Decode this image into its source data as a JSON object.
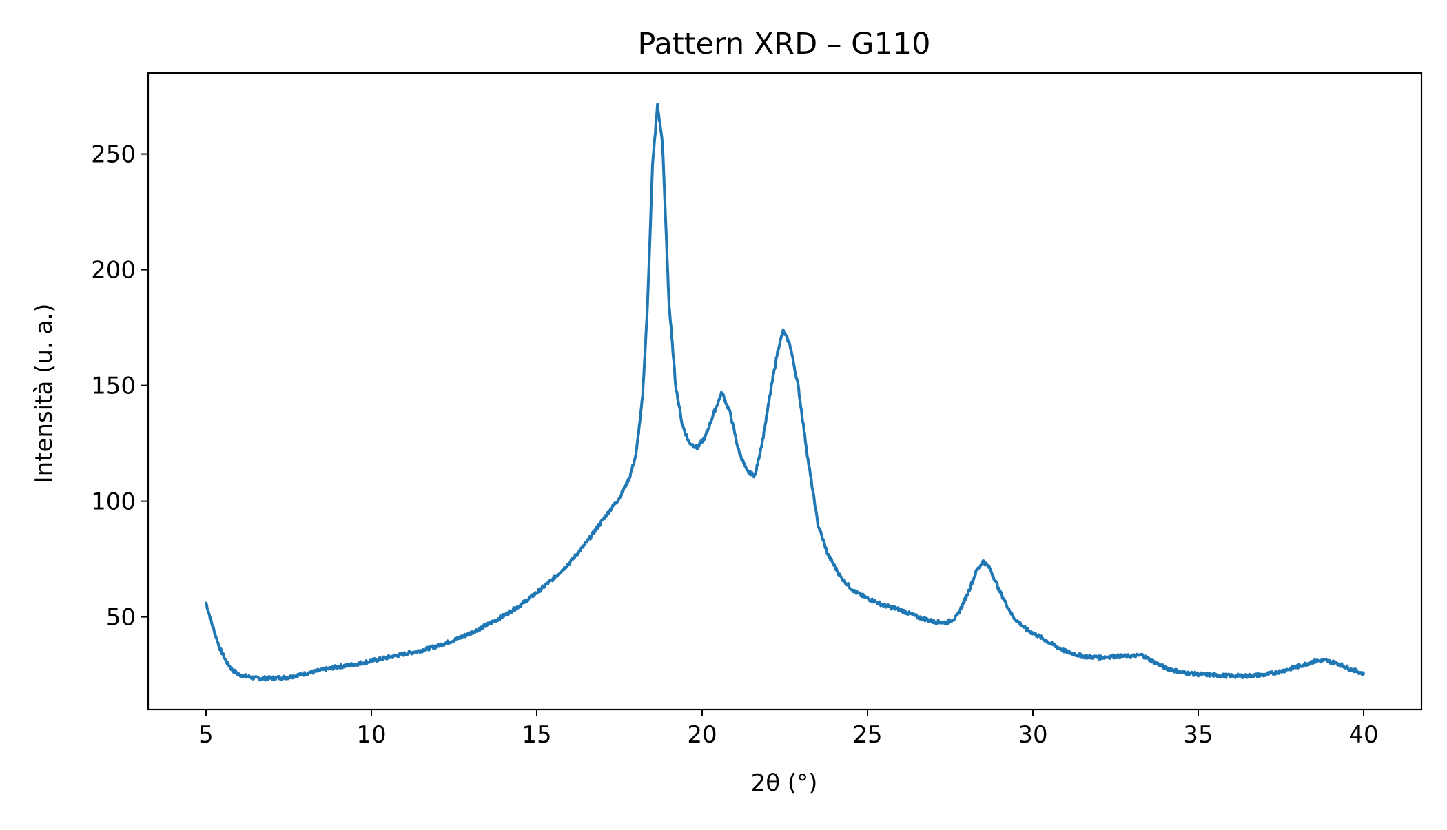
{
  "chart_data": {
    "type": "line",
    "title": "Pattern XRD – G110",
    "xlabel": "2θ (°)",
    "ylabel": "Intensità (u. a.)",
    "xlim": [
      3.25,
      41.75
    ],
    "ylim": [
      10,
      285
    ],
    "xticks": [
      5,
      10,
      15,
      20,
      25,
      30,
      35,
      40
    ],
    "yticks": [
      50,
      100,
      150,
      200,
      250
    ],
    "grid": false,
    "legend": "none",
    "series": [
      {
        "color": "#1f77b4",
        "points": [
          [
            5.0,
            56
          ],
          [
            5.2,
            46
          ],
          [
            5.4,
            37
          ],
          [
            5.6,
            31
          ],
          [
            5.8,
            27
          ],
          [
            6.0,
            25
          ],
          [
            6.5,
            23.5
          ],
          [
            7.0,
            23.5
          ],
          [
            7.5,
            24
          ],
          [
            8.0,
            25.5
          ],
          [
            8.5,
            27
          ],
          [
            9.0,
            28.5
          ],
          [
            9.5,
            29.5
          ],
          [
            10.0,
            31
          ],
          [
            10.5,
            32.5
          ],
          [
            11.0,
            34
          ],
          [
            11.5,
            35.5
          ],
          [
            12.0,
            37.5
          ],
          [
            12.5,
            40
          ],
          [
            13.0,
            43
          ],
          [
            13.5,
            46.5
          ],
          [
            14.0,
            50.5
          ],
          [
            14.5,
            55
          ],
          [
            15.0,
            60.5
          ],
          [
            15.5,
            66.5
          ],
          [
            16.0,
            73.5
          ],
          [
            16.5,
            82
          ],
          [
            17.0,
            92
          ],
          [
            17.5,
            101.5
          ],
          [
            17.8,
            110
          ],
          [
            18.0,
            120
          ],
          [
            18.2,
            145
          ],
          [
            18.35,
            185
          ],
          [
            18.5,
            245
          ],
          [
            18.65,
            271
          ],
          [
            18.8,
            255
          ],
          [
            19.0,
            185
          ],
          [
            19.2,
            150
          ],
          [
            19.4,
            133
          ],
          [
            19.6,
            125.5
          ],
          [
            19.85,
            123
          ],
          [
            20.1,
            128
          ],
          [
            20.35,
            138
          ],
          [
            20.6,
            147
          ],
          [
            20.85,
            138
          ],
          [
            21.1,
            122
          ],
          [
            21.35,
            113
          ],
          [
            21.6,
            111
          ],
          [
            21.85,
            128
          ],
          [
            22.1,
            150
          ],
          [
            22.3,
            166
          ],
          [
            22.45,
            173.5
          ],
          [
            22.65,
            168
          ],
          [
            22.9,
            150
          ],
          [
            23.2,
            118
          ],
          [
            23.5,
            90
          ],
          [
            23.8,
            77
          ],
          [
            24.2,
            67
          ],
          [
            24.6,
            61
          ],
          [
            25.0,
            58
          ],
          [
            25.5,
            55
          ],
          [
            26.0,
            53
          ],
          [
            26.5,
            50
          ],
          [
            27.0,
            48
          ],
          [
            27.4,
            47.5
          ],
          [
            27.7,
            50
          ],
          [
            28.0,
            59
          ],
          [
            28.3,
            70
          ],
          [
            28.5,
            74
          ],
          [
            28.7,
            71
          ],
          [
            29.0,
            61
          ],
          [
            29.4,
            50
          ],
          [
            29.8,
            44.5
          ],
          [
            30.2,
            41.5
          ],
          [
            30.6,
            38
          ],
          [
            31.0,
            35
          ],
          [
            31.5,
            33
          ],
          [
            32.0,
            32.5
          ],
          [
            32.5,
            33
          ],
          [
            33.0,
            33
          ],
          [
            33.3,
            33.5
          ],
          [
            33.6,
            31
          ],
          [
            34.0,
            28
          ],
          [
            34.5,
            26
          ],
          [
            35.0,
            25.2
          ],
          [
            35.5,
            24.8
          ],
          [
            36.0,
            24.5
          ],
          [
            36.5,
            24.5
          ],
          [
            37.0,
            25
          ],
          [
            37.5,
            26.5
          ],
          [
            38.0,
            28.5
          ],
          [
            38.5,
            30.8
          ],
          [
            38.8,
            31.2
          ],
          [
            39.2,
            30
          ],
          [
            39.6,
            27.5
          ],
          [
            40.0,
            25.5
          ]
        ]
      }
    ]
  }
}
